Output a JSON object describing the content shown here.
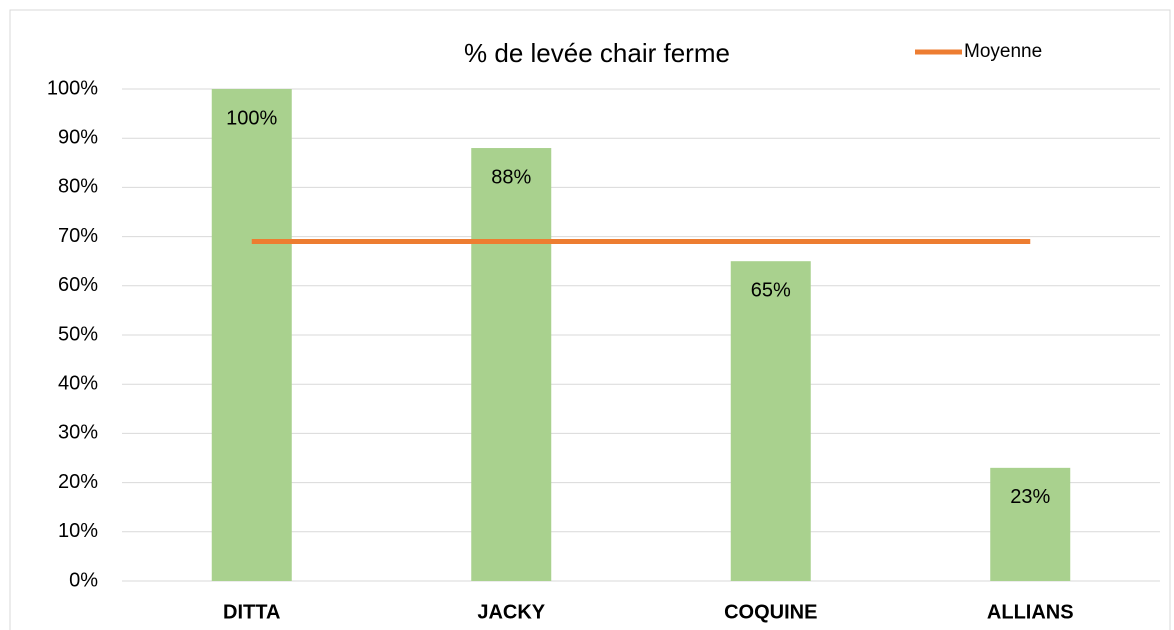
{
  "chart_data": {
    "type": "bar",
    "title": "% de levée chair ferme",
    "categories": [
      "DITTA",
      "JACKY",
      "COQUINE",
      "ALLIANS"
    ],
    "series": [
      {
        "color": "#a9d18e",
        "values": [
          100,
          88,
          65,
          23
        ],
        "value_labels": [
          "100%",
          "88%",
          "65%",
          "23%"
        ]
      },
      {
        "name": "Moyenne",
        "type": "line",
        "color": "#ed7d31",
        "values": [
          69,
          69,
          69,
          69
        ]
      }
    ],
    "ylim": [
      0,
      100
    ],
    "yticks": [
      {
        "value": 0,
        "label": "0%"
      },
      {
        "value": 10,
        "label": "10%"
      },
      {
        "value": 20,
        "label": "20%"
      },
      {
        "value": 30,
        "label": "30%"
      },
      {
        "value": 40,
        "label": "40%"
      },
      {
        "value": 50,
        "label": "50%"
      },
      {
        "value": 60,
        "label": "60%"
      },
      {
        "value": 70,
        "label": "70%"
      },
      {
        "value": 80,
        "label": "80%"
      },
      {
        "value": 90,
        "label": "90%"
      },
      {
        "value": 100,
        "label": "100%"
      }
    ],
    "grid": true,
    "legend": "top-right"
  }
}
